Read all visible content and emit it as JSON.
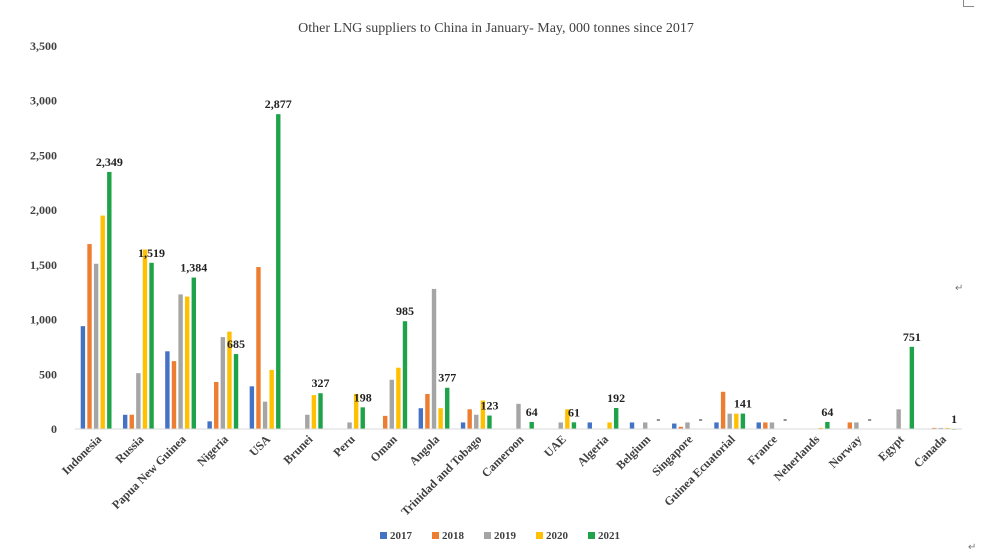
{
  "chart_data": {
    "type": "bar",
    "title": "Other LNG suppliers to China in January- May, 000 tonnes since 2017",
    "xlabel": "",
    "ylabel": "",
    "ylim": [
      0,
      3500
    ],
    "yticks": [
      0,
      500,
      1000,
      1500,
      2000,
      2500,
      3000,
      3500
    ],
    "ytick_labels": [
      "0",
      "500",
      "1,000",
      "1,500",
      "2,000",
      "2,500",
      "3,000",
      "3,500"
    ],
    "grid": false,
    "legend_position": "bottom",
    "categories": [
      "Indonesia",
      "Russia",
      "Papua New Guinea",
      "Nigeria",
      "USA",
      "Brunei",
      "Peru",
      "Oman",
      "Angola",
      "Trinidad and Tobago",
      "Cameroon",
      "UAE",
      "Algeria",
      "Belgium",
      "Singapore",
      "Guinea Ecuatorial",
      "France",
      "Neherlands",
      "Norway",
      "Egypt",
      "Canada"
    ],
    "series": [
      {
        "name": "2017",
        "color": "#4472c4",
        "values": [
          940,
          130,
          710,
          70,
          390,
          0,
          0,
          0,
          190,
          60,
          0,
          0,
          60,
          60,
          50,
          60,
          60,
          0,
          0,
          0,
          0
        ]
      },
      {
        "name": "2018",
        "color": "#ed7d31",
        "values": [
          1690,
          130,
          620,
          430,
          1480,
          0,
          0,
          120,
          320,
          180,
          0,
          0,
          0,
          0,
          20,
          340,
          60,
          0,
          60,
          0,
          10
        ]
      },
      {
        "name": "2019",
        "color": "#a5a5a5",
        "values": [
          1510,
          510,
          1230,
          840,
          250,
          130,
          60,
          450,
          1280,
          130,
          230,
          60,
          0,
          60,
          60,
          140,
          60,
          0,
          60,
          180,
          10
        ]
      },
      {
        "name": "2020",
        "color": "#ffc000",
        "values": [
          1950,
          1640,
          1210,
          890,
          540,
          310,
          320,
          560,
          190,
          260,
          0,
          180,
          60,
          0,
          0,
          140,
          0,
          10,
          0,
          0,
          10
        ]
      },
      {
        "name": "2021",
        "color": "#1fa34a",
        "values": [
          2349,
          1519,
          1384,
          685,
          2877,
          327,
          198,
          985,
          377,
          123,
          64,
          61,
          192,
          0,
          0,
          141,
          0,
          64,
          0,
          751,
          1
        ]
      }
    ],
    "data_labels": [
      "2,349",
      "1,519",
      "1,384",
      "685",
      "2,877",
      "327",
      "198",
      "985",
      "377",
      "123",
      "64",
      "61",
      "192",
      "-",
      "-",
      "141",
      "-",
      "64",
      "-",
      "751",
      "1"
    ]
  }
}
